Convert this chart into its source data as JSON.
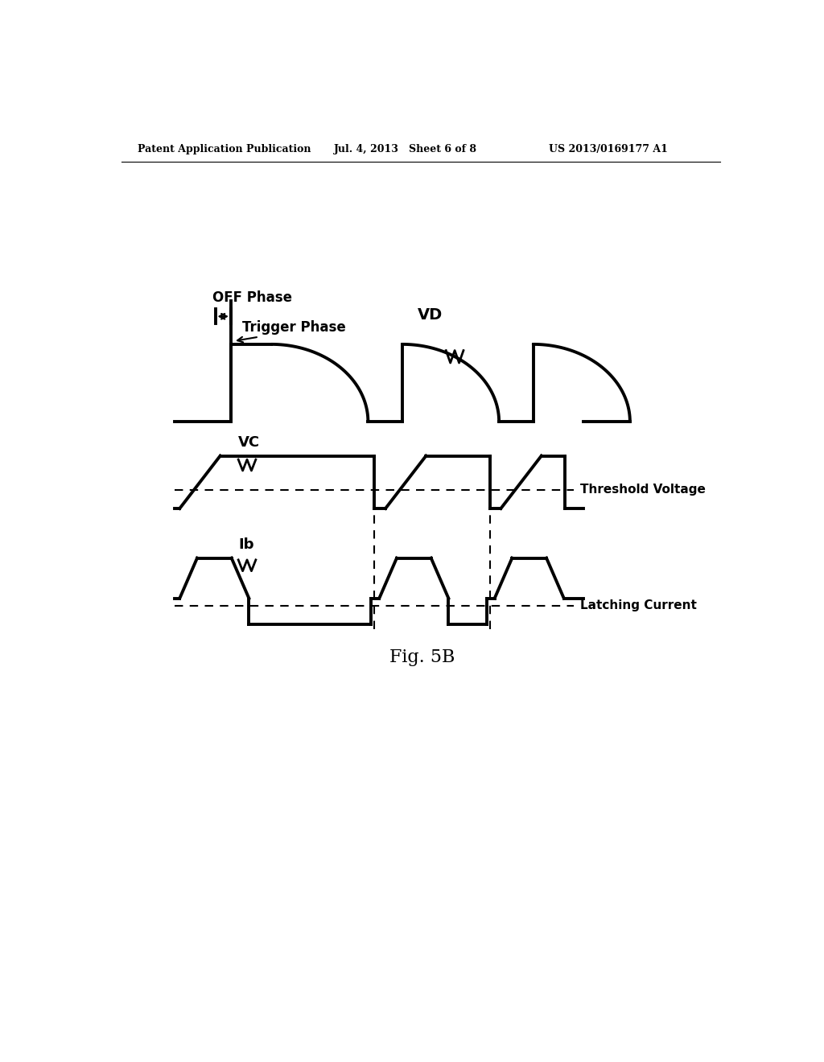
{
  "bg_color": "#ffffff",
  "header_left": "Patent Application Publication",
  "header_mid": "Jul. 4, 2013   Sheet 6 of 8",
  "header_right": "US 2013/0169177 A1",
  "fig_label": "Fig. 5B",
  "label_VD": "VD",
  "label_VC": "VC",
  "label_Ib": "Ib",
  "label_OFF": "OFF Phase",
  "label_Trigger": "Trigger Phase",
  "label_Threshold": "Threshold Voltage",
  "label_Latching": "Latching Current",
  "fig_width": 10.24,
  "fig_height": 13.2
}
